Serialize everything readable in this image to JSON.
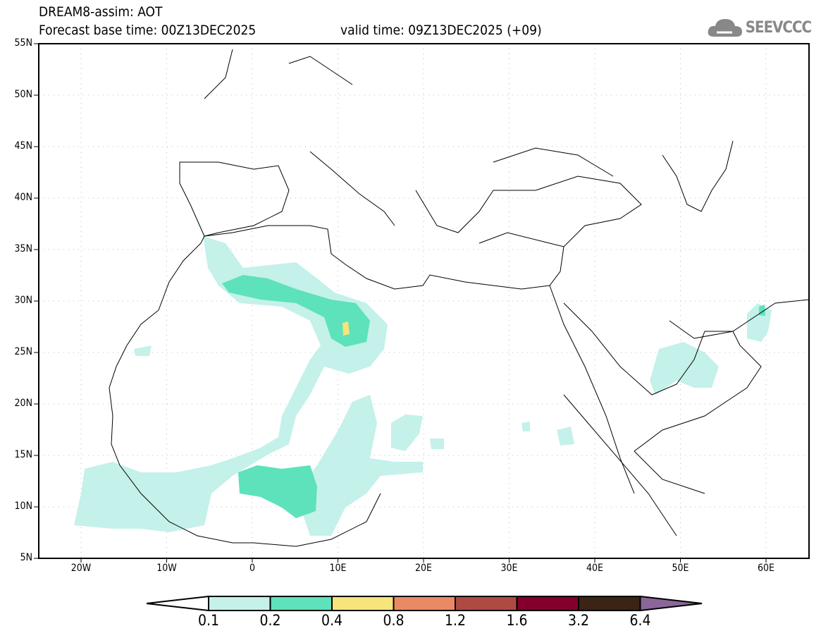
{
  "title": "DREAM8-assim: AOT",
  "base_time": "Forecast base time: 00Z13DEC2025",
  "valid_time": "valid time: 09Z13DEC2025 (+09)",
  "logo_text": "SEEVCCC",
  "lat_labels": [
    "55N",
    "50N",
    "45N",
    "40N",
    "35N",
    "30N",
    "25N",
    "20N",
    "15N",
    "10N",
    "5N"
  ],
  "lon_labels": [
    "20W",
    "10W",
    "0",
    "10E",
    "20E",
    "30E",
    "40E",
    "50E",
    "60E"
  ],
  "colorbar": {
    "labels": [
      "0.1",
      "0.2",
      "0.4",
      "0.8",
      "1.2",
      "1.6",
      "3.2",
      "6.4"
    ],
    "colors": [
      "#ffffff",
      "#c4f1ea",
      "#5de2bb",
      "#f7e47a",
      "#ea8966",
      "#ae4a42",
      "#84002c",
      "#3b2414",
      "#8a6699"
    ]
  }
}
